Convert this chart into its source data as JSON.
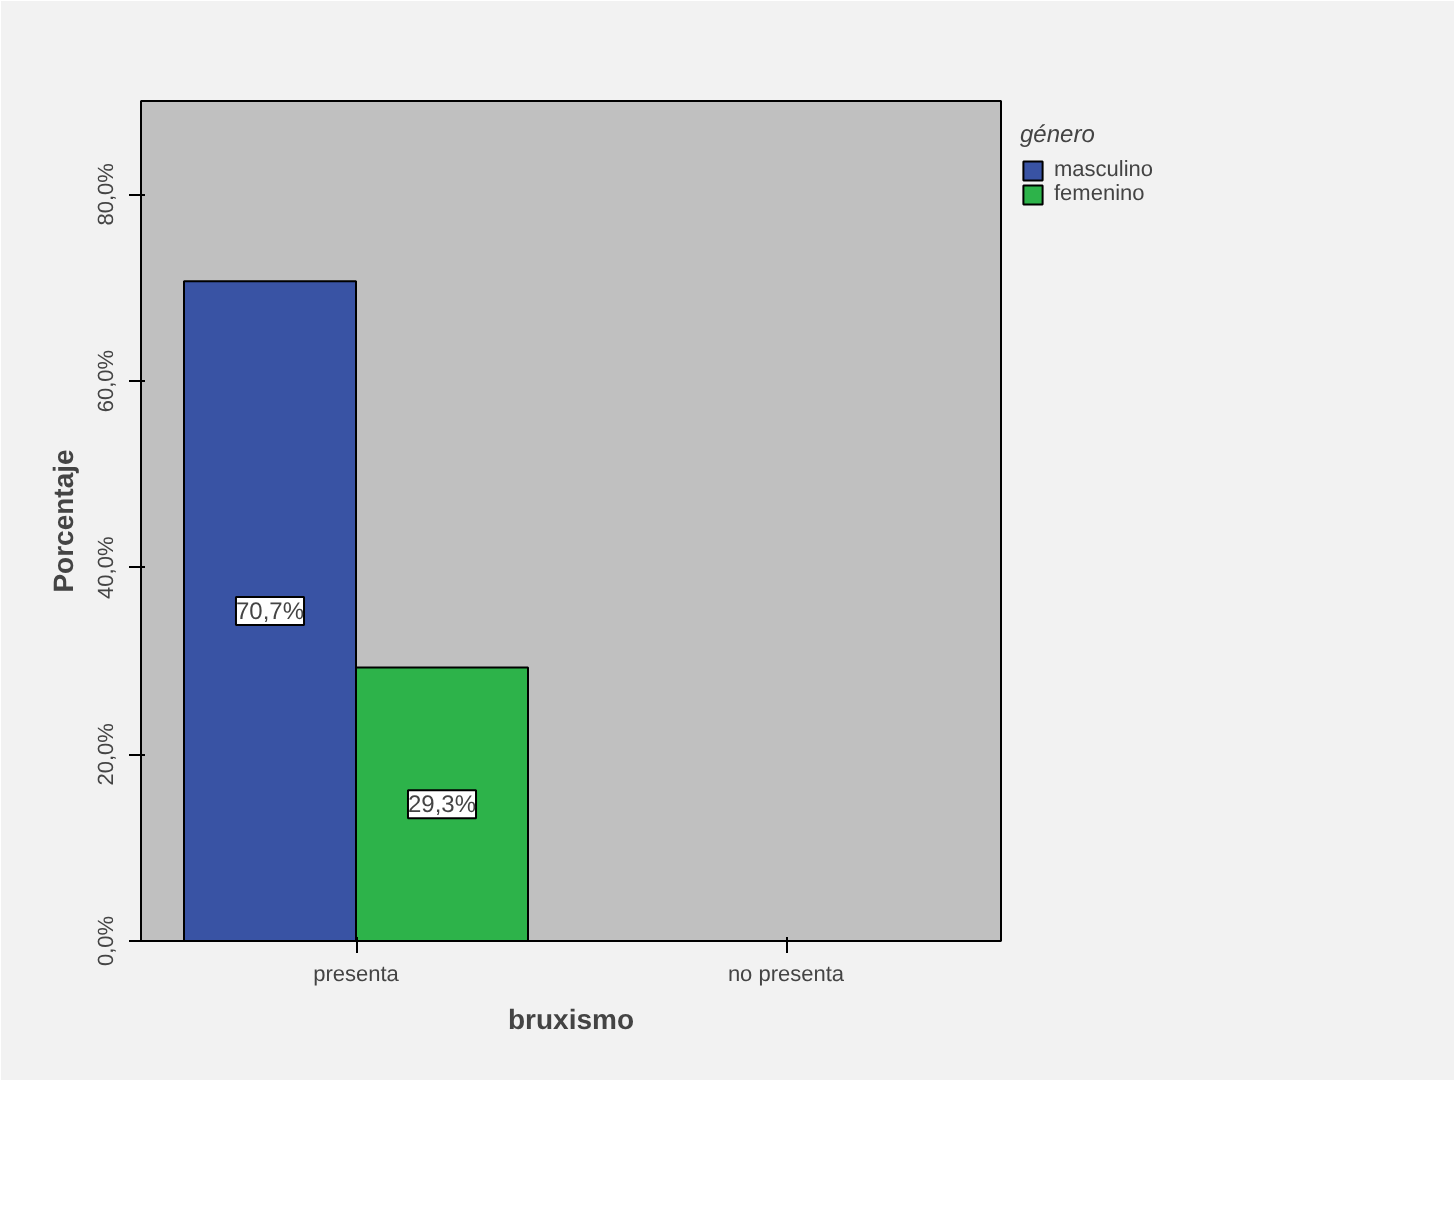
{
  "chart_data": {
    "type": "bar",
    "xlabel": "bruxismo",
    "ylabel": "Porcentaje",
    "legend_title": "género",
    "legend": "top right",
    "categories": [
      "presenta",
      "no presenta"
    ],
    "series": [
      {
        "name": "masculino",
        "color": "#3953a4",
        "values": [
          70.7,
          null
        ],
        "value_labels": [
          "70,7%",
          null
        ]
      },
      {
        "name": "femenino",
        "color": "#2db34a",
        "values": [
          29.3,
          null
        ],
        "value_labels": [
          "29,3%",
          null
        ]
      }
    ],
    "ylim": [
      0,
      90
    ],
    "yticks": [
      {
        "value": 0,
        "label": "0,0%"
      },
      {
        "value": 20,
        "label": "20,0%"
      },
      {
        "value": 40,
        "label": "40,0%"
      },
      {
        "value": 60,
        "label": "60,0%"
      },
      {
        "value": 80,
        "label": "80,0%"
      }
    ],
    "grid": false
  }
}
